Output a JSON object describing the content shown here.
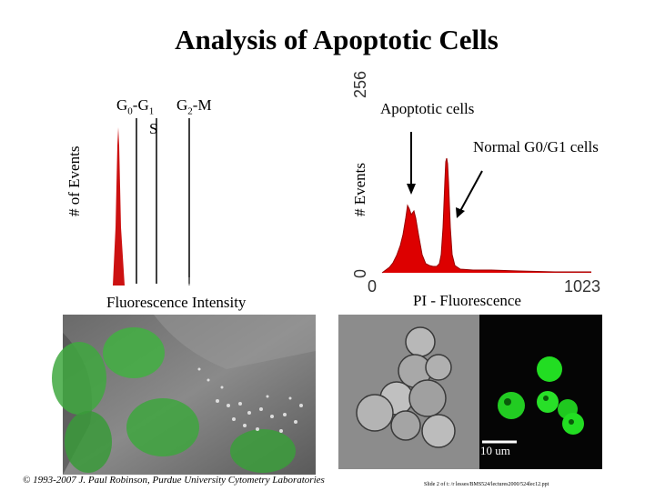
{
  "slide": {
    "title": "Analysis of Apoptotic Cells",
    "footer": "© 1993-2007 J. Paul Robinson, Purdue University Cytometry Laboratories",
    "slide_note": "Slide 2 of t: /r lesses/BMS524/lectures2000/524lec12.ppt"
  },
  "left_histogram": {
    "ylabel": "# of Events",
    "xlabel": "Fluorescence Intensity",
    "region_g0g1_prefix": "G",
    "region_g0g1_sub0": "0",
    "region_g0g1_mid": "-G",
    "region_g0g1_sub1": "1",
    "region_s": "S",
    "region_g2m_prefix": "G",
    "region_g2m_sub": "2",
    "region_g2m_suffix": "-M",
    "peak_color": "#cc1111"
  },
  "right_histogram": {
    "ylabel": "# Events",
    "xlabel": "PI - Fluorescence",
    "y_min_label": "0",
    "y_max_label": "256",
    "x_min_label": "0",
    "x_max_label": "1023",
    "annotation_apoptotic": "Apoptotic cells",
    "annotation_normal": "Normal G0/G1 cells",
    "fill_color": "#dd0000"
  },
  "micrographs": {
    "scale_bar_label": "10 um",
    "fluor_color": "#22dd22"
  }
}
